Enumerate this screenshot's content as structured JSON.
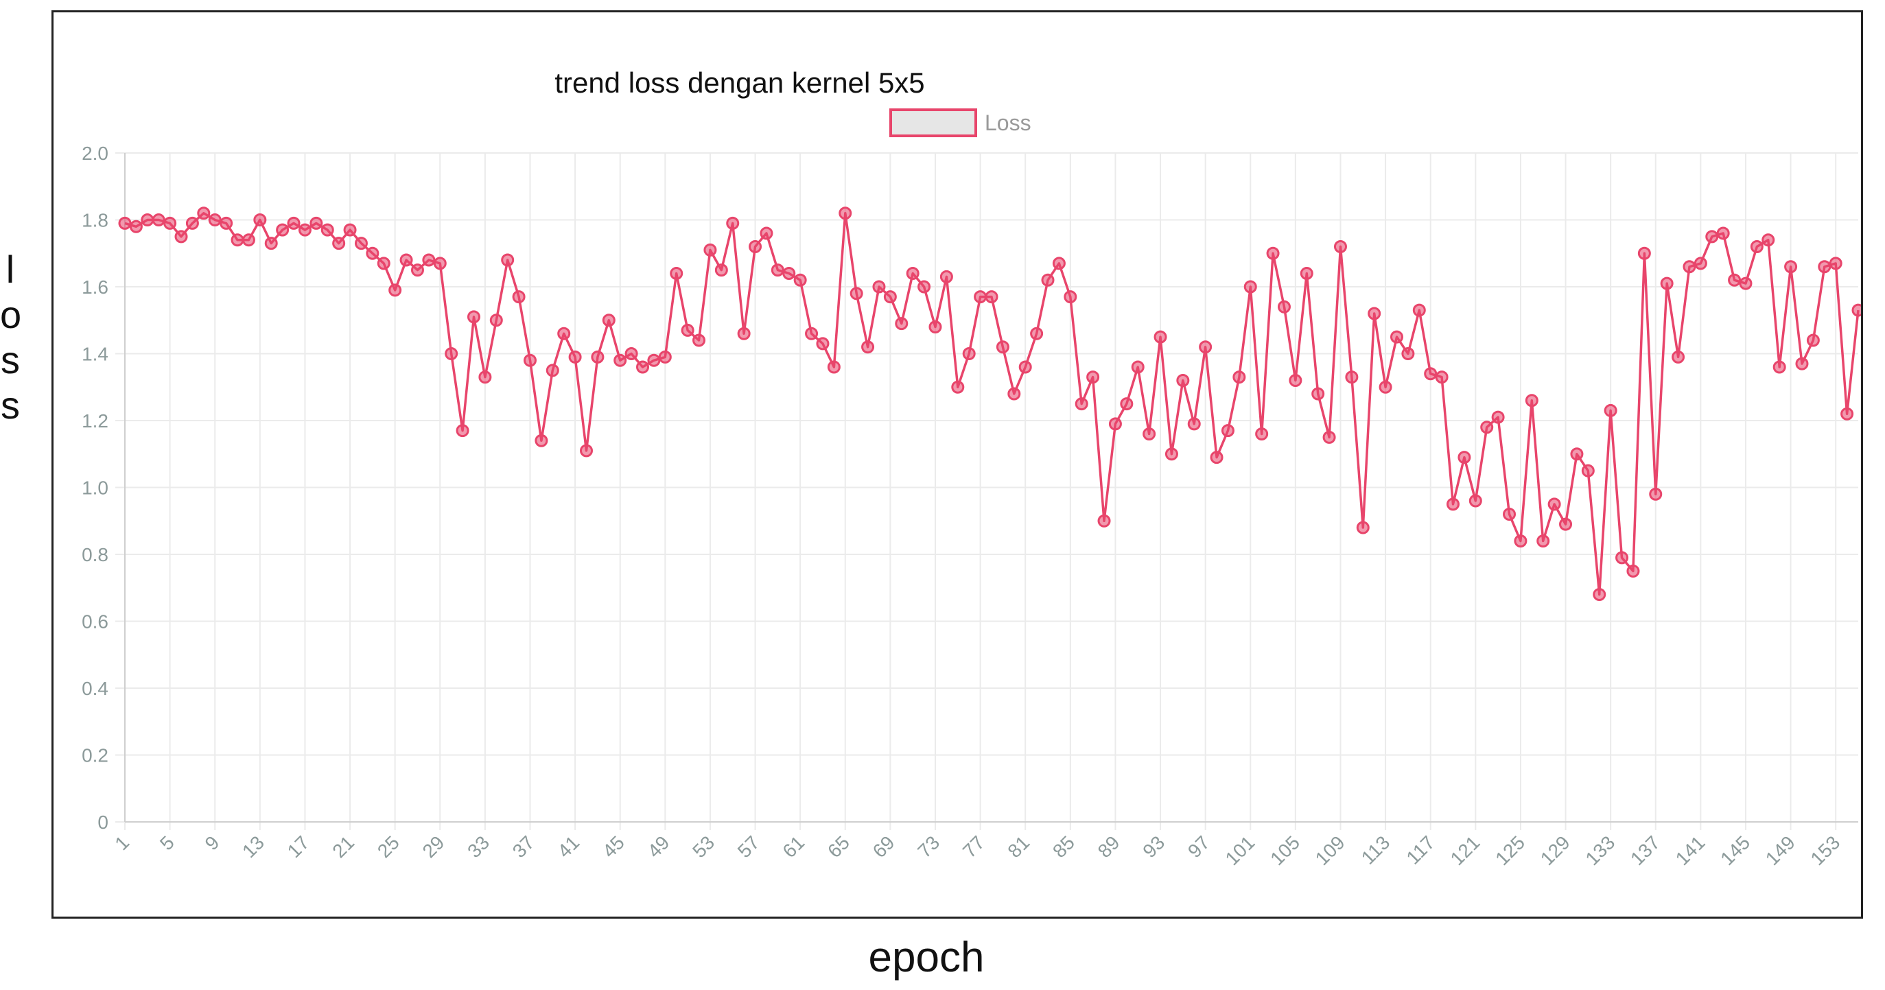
{
  "chart_data": {
    "type": "line",
    "title": "trend loss dengan kernel 5x5",
    "xlabel": "epoch",
    "ylabel": "loss",
    "ylim": [
      0,
      2.0
    ],
    "yticks": [
      "0",
      "0.2",
      "0.4",
      "0.6",
      "0.8",
      "1.0",
      "1.2",
      "1.4",
      "1.6",
      "1.8",
      "2.0"
    ],
    "xlim": [
      1,
      155
    ],
    "xtick_step": 4,
    "grid": true,
    "legend_position": "top-center",
    "series": [
      {
        "name": "Loss",
        "color": "#e8456b",
        "values": [
          1.79,
          1.78,
          1.8,
          1.8,
          1.79,
          1.75,
          1.79,
          1.82,
          1.8,
          1.79,
          1.74,
          1.74,
          1.8,
          1.73,
          1.77,
          1.79,
          1.77,
          1.79,
          1.77,
          1.73,
          1.77,
          1.73,
          1.7,
          1.67,
          1.59,
          1.68,
          1.65,
          1.68,
          1.67,
          1.4,
          1.17,
          1.51,
          1.33,
          1.5,
          1.68,
          1.57,
          1.38,
          1.14,
          1.35,
          1.46,
          1.39,
          1.11,
          1.39,
          1.5,
          1.38,
          1.4,
          1.36,
          1.38,
          1.39,
          1.64,
          1.47,
          1.44,
          1.71,
          1.65,
          1.79,
          1.46,
          1.72,
          1.76,
          1.65,
          1.64,
          1.62,
          1.46,
          1.43,
          1.36,
          1.82,
          1.58,
          1.42,
          1.6,
          1.57,
          1.49,
          1.64,
          1.6,
          1.48,
          1.63,
          1.3,
          1.4,
          1.57,
          1.57,
          1.42,
          1.28,
          1.36,
          1.46,
          1.62,
          1.67,
          1.57,
          1.25,
          1.33,
          0.9,
          1.19,
          1.25,
          1.36,
          1.16,
          1.45,
          1.1,
          1.32,
          1.19,
          1.42,
          1.09,
          1.17,
          1.33,
          1.6,
          1.16,
          1.7,
          1.54,
          1.32,
          1.64,
          1.28,
          1.15,
          1.72,
          1.33,
          0.88,
          1.52,
          1.3,
          1.45,
          1.4,
          1.53,
          1.34,
          1.33,
          0.95,
          1.09,
          0.96,
          1.18,
          1.21,
          0.92,
          0.84,
          1.26,
          0.84,
          0.95,
          0.89,
          1.1,
          1.05,
          0.68,
          1.23,
          0.79,
          0.75,
          1.7,
          0.98,
          1.61,
          1.39,
          1.66,
          1.67,
          1.75,
          1.76,
          1.62,
          1.61,
          1.72,
          1.74,
          1.36,
          1.66,
          1.37,
          1.44,
          1.66,
          1.67,
          1.22,
          1.53
        ]
      }
    ]
  }
}
